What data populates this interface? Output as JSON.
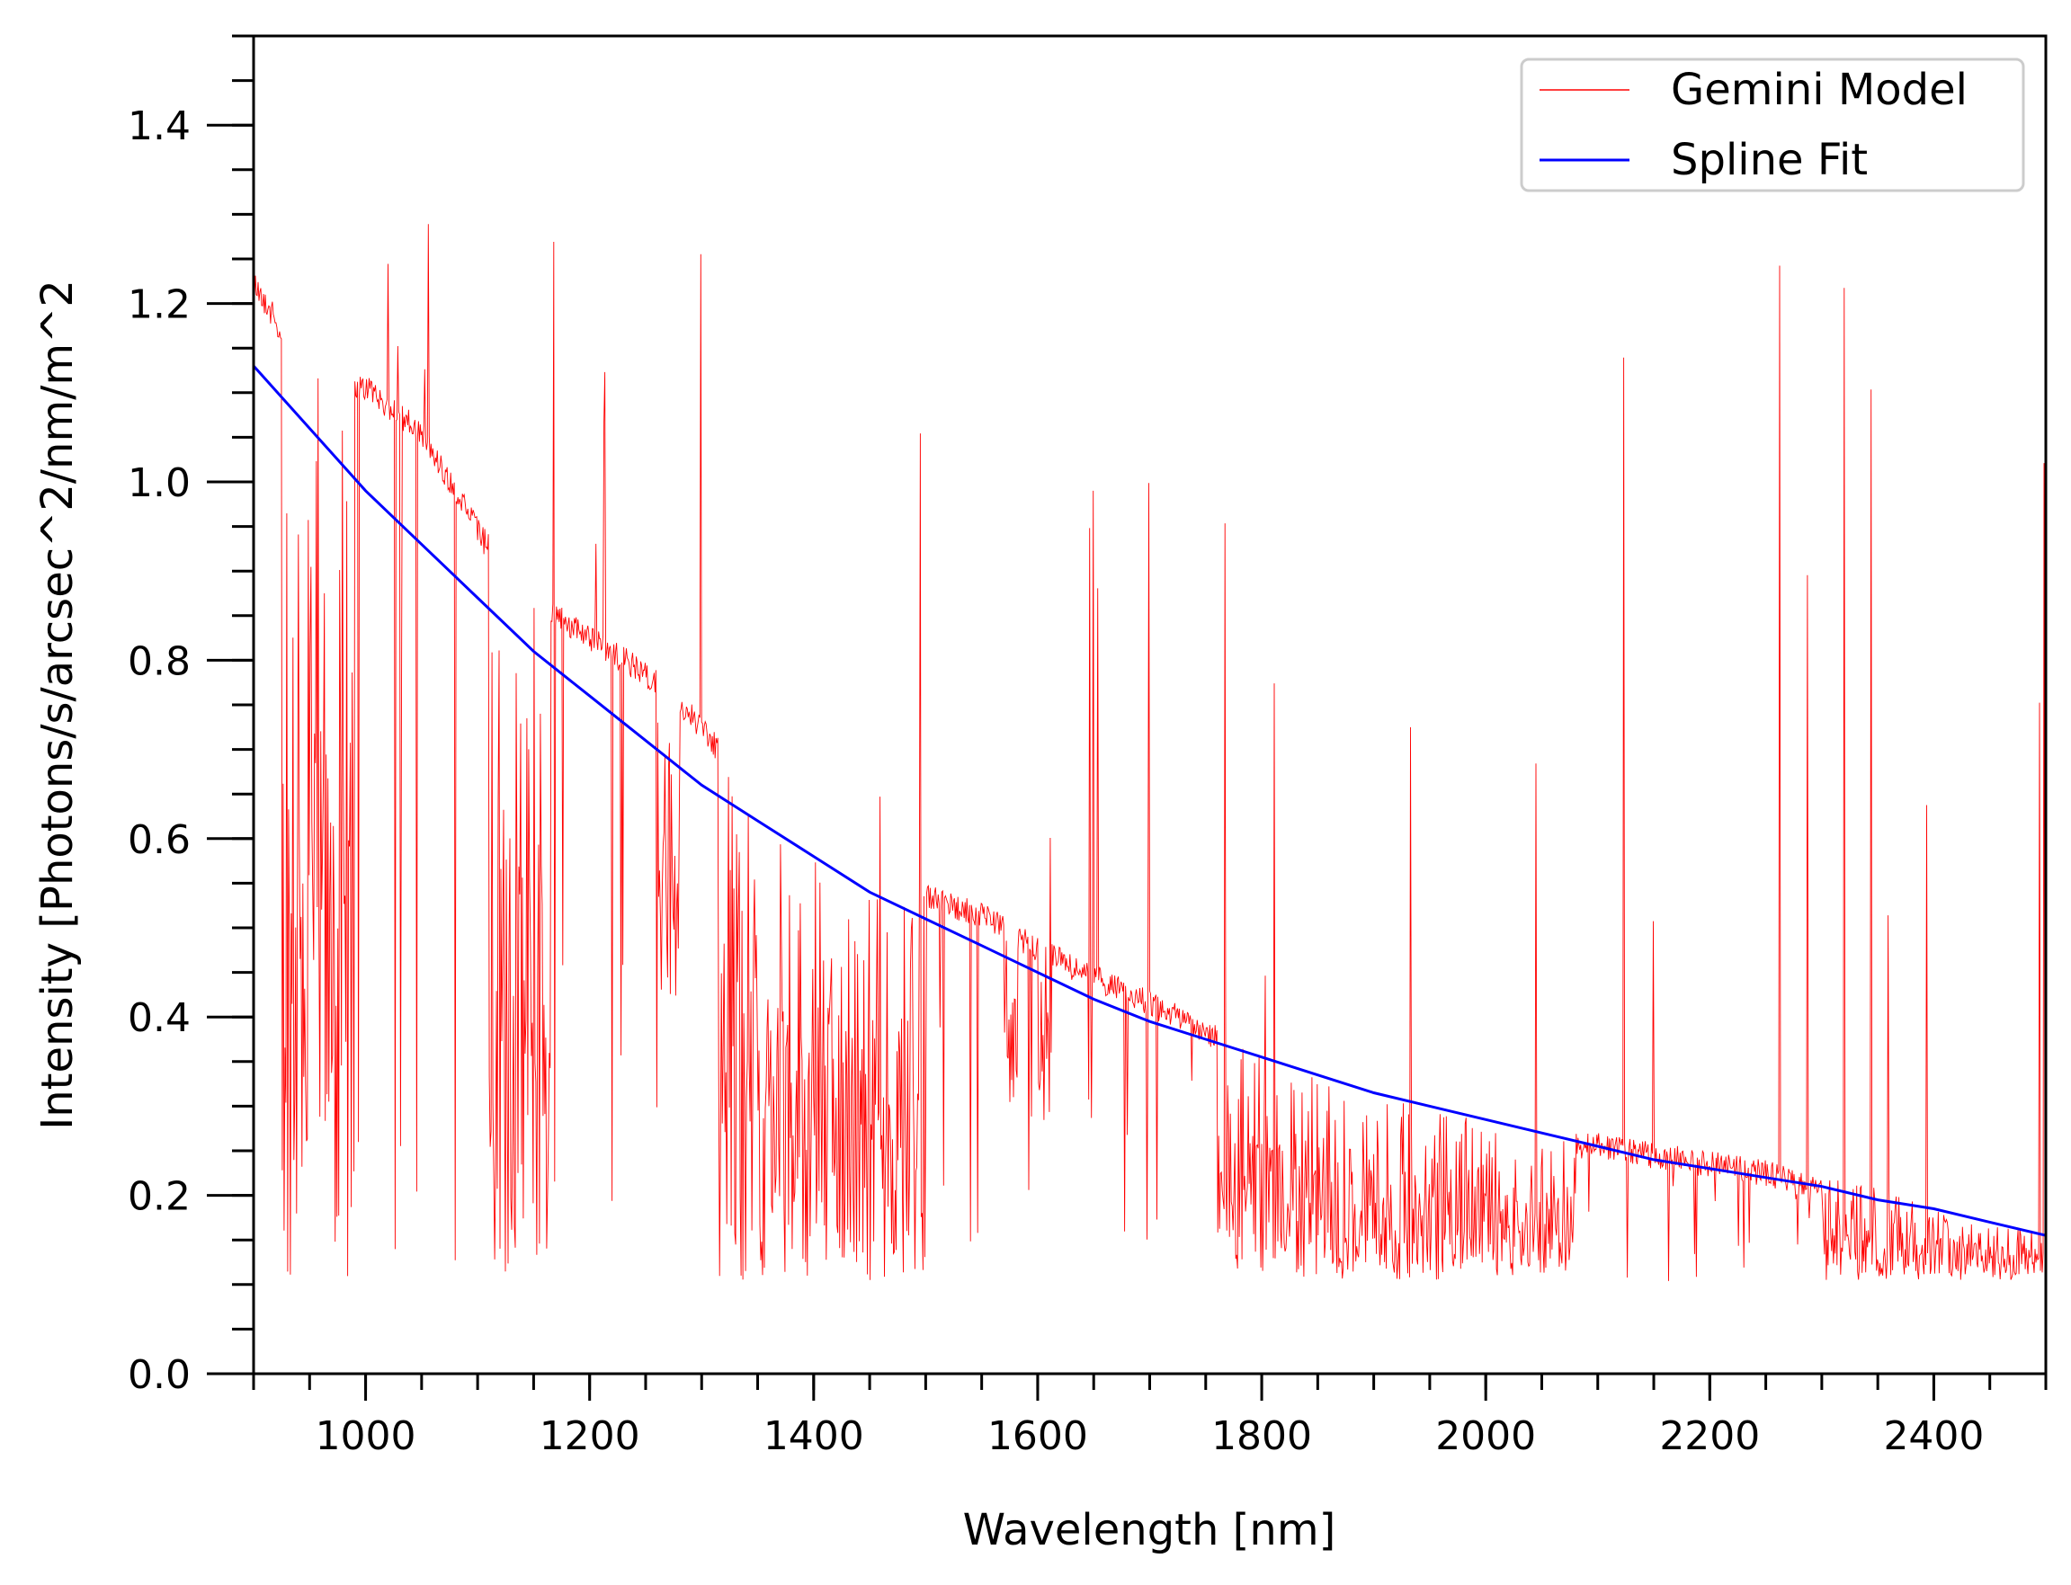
{
  "chart_data": {
    "type": "line",
    "title": "",
    "xlabel": "Wavelength [nm]",
    "ylabel": "Intensity [Photons/s/arcsec^2/nm/m^2",
    "xlim": [
      900,
      2500
    ],
    "ylim": [
      0.0,
      1.5
    ],
    "x_major_ticks": [
      1000,
      1200,
      1400,
      1600,
      1800,
      2000,
      2200,
      2400
    ],
    "x_tick_labels": [
      "1000",
      "1200",
      "1400",
      "1600",
      "1800",
      "2000",
      "2200",
      "2400"
    ],
    "x_minor_step": 50,
    "y_major_ticks": [
      0.0,
      0.2,
      0.4,
      0.6,
      0.8,
      1.0,
      1.2,
      1.4
    ],
    "y_tick_labels": [
      "0.0",
      "0.2",
      "0.4",
      "0.6",
      "0.8",
      "1.0",
      "1.2",
      "1.4"
    ],
    "y_minor_step": 0.05,
    "grid": false,
    "legend_position": "top-right",
    "series": [
      {
        "name": "Gemini Model",
        "color": "#ff0000",
        "style": "thin-line",
        "continuum": {
          "x": [
            900,
            940,
            980,
            1000,
            1050,
            1100,
            1150,
            1200,
            1250,
            1300,
            1350,
            1400,
            1450,
            1500,
            1550,
            1600,
            1650,
            1700,
            1750,
            1800,
            1850,
            1900,
            1950,
            2000,
            2050,
            2100,
            2150,
            2200,
            2250,
            2300,
            2350,
            2400,
            2450,
            2500
          ],
          "y": [
            1.24,
            1.15,
            1.13,
            1.12,
            1.07,
            0.96,
            0.88,
            0.84,
            0.8,
            0.74,
            0.65,
            0.58,
            0.56,
            0.55,
            0.53,
            0.49,
            0.46,
            0.43,
            0.4,
            0.36,
            0.33,
            0.31,
            0.3,
            0.28,
            0.27,
            0.27,
            0.26,
            0.25,
            0.24,
            0.22,
            0.21,
            0.19,
            0.17,
            0.16
          ]
        },
        "absorption_bands": [
          {
            "from": 925,
            "to": 990,
            "min": 0.105
          },
          {
            "from": 1110,
            "to": 1165,
            "min": 0.105
          },
          {
            "from": 1260,
            "to": 1280,
            "min": 0.4
          },
          {
            "from": 1315,
            "to": 1500,
            "min": 0.105
          },
          {
            "from": 1570,
            "to": 1582,
            "min": 0.3
          },
          {
            "from": 1600,
            "to": 1612,
            "min": 0.28
          },
          {
            "from": 1760,
            "to": 1960,
            "min": 0.105
          },
          {
            "from": 1960,
            "to": 2080,
            "min": 0.11
          },
          {
            "from": 2300,
            "to": 2500,
            "min": 0.105
          }
        ],
        "emission_peak": 1.3
      },
      {
        "name": "Spline Fit",
        "color": "#0000ff",
        "x": [
          900,
          950,
          1000,
          1050,
          1100,
          1150,
          1200,
          1250,
          1300,
          1350,
          1400,
          1450,
          1500,
          1550,
          1600,
          1650,
          1700,
          1750,
          1800,
          1850,
          1900,
          1950,
          2000,
          2050,
          2100,
          2150,
          2200,
          2250,
          2300,
          2350,
          2400,
          2450,
          2500
        ],
        "y": [
          1.13,
          1.06,
          0.99,
          0.93,
          0.87,
          0.81,
          0.76,
          0.71,
          0.66,
          0.62,
          0.58,
          0.54,
          0.51,
          0.48,
          0.45,
          0.42,
          0.395,
          0.375,
          0.355,
          0.335,
          0.315,
          0.3,
          0.285,
          0.27,
          0.255,
          0.24,
          0.23,
          0.22,
          0.21,
          0.195,
          0.185,
          0.17,
          0.155
        ]
      }
    ]
  }
}
